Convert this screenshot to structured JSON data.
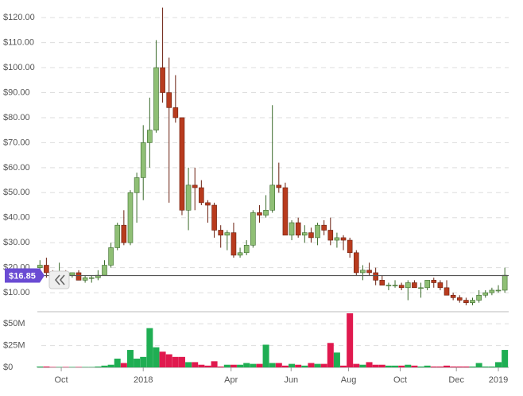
{
  "chart_data": [
    {
      "type": "candlestick",
      "up_color": "#8fbf75",
      "down_color": "#b83b1e",
      "xlim": [
        -0.4,
        72.6
      ],
      "ylim": [
        2.4,
        124.5
      ],
      "yticks": [
        {
          "value": 10,
          "label": "$10.00"
        },
        {
          "value": 20,
          "label": "$20.00"
        },
        {
          "value": 30,
          "label": "$30.00"
        },
        {
          "value": 40,
          "label": "$40.00"
        },
        {
          "value": 50,
          "label": "$50.00"
        },
        {
          "value": 60,
          "label": "$60.00"
        },
        {
          "value": 70,
          "label": "$70.00"
        },
        {
          "value": 80,
          "label": "$80.00"
        },
        {
          "value": 90,
          "label": "$90.00"
        },
        {
          "value": 100,
          "label": "$100.00"
        },
        {
          "value": 110,
          "label": "$110.00"
        },
        {
          "value": 120,
          "label": "$120.00"
        }
      ],
      "grid": true,
      "current_price": {
        "value": 16.85,
        "label": "$16.85"
      },
      "open": [
        20,
        21,
        18,
        17,
        18,
        17,
        18,
        15,
        16,
        16,
        17,
        21,
        28,
        37,
        30,
        50,
        56,
        70,
        75,
        100,
        90,
        84,
        80,
        43,
        53,
        52,
        46,
        45,
        35,
        33,
        34,
        25,
        26,
        29,
        42,
        41,
        43,
        53,
        52,
        33,
        38,
        33,
        34,
        32,
        37,
        35,
        31,
        32,
        31,
        26,
        18,
        19,
        18,
        15,
        13,
        13,
        13,
        12,
        14,
        12,
        12,
        15,
        14,
        12,
        9,
        8,
        7,
        6,
        7,
        9,
        10,
        11,
        11
      ],
      "high": [
        23,
        24,
        19,
        22,
        19,
        18,
        19,
        17,
        17,
        19,
        23,
        30,
        38,
        43,
        51,
        58,
        77,
        88,
        111,
        124,
        104,
        97,
        80,
        60,
        60,
        55,
        47,
        46,
        37,
        35,
        38,
        28,
        31,
        43,
        45,
        49,
        85,
        62,
        54,
        39,
        40,
        37,
        36,
        38,
        39,
        40,
        34,
        33,
        32,
        27,
        21,
        22,
        20,
        17,
        14,
        15,
        14,
        15,
        15,
        14,
        15,
        16,
        15,
        15,
        10,
        9,
        8,
        8,
        11,
        11,
        12,
        13,
        20
      ],
      "low": [
        18,
        16,
        16,
        16,
        16,
        16,
        15,
        14,
        14,
        15,
        17,
        20,
        27,
        29,
        29,
        38,
        47,
        60,
        74,
        86,
        46,
        78,
        41,
        35,
        43,
        45,
        38,
        32,
        28,
        27,
        24,
        24,
        25,
        28,
        38,
        40,
        42,
        50,
        34,
        31,
        32,
        30,
        30,
        29,
        33,
        29,
        28,
        27,
        24,
        17,
        15,
        17,
        13,
        13,
        11,
        12,
        11,
        7,
        12,
        8,
        11,
        12,
        11,
        9,
        7,
        6,
        5,
        5,
        6,
        8,
        9,
        10,
        10
      ],
      "close": [
        21,
        18,
        17,
        18,
        17,
        18,
        15,
        16,
        16,
        17,
        21,
        28,
        37,
        30,
        50,
        56,
        70,
        75,
        100,
        90,
        84,
        80,
        43,
        53,
        52,
        46,
        45,
        35,
        33,
        34,
        25,
        26,
        29,
        42,
        41,
        43,
        53,
        52,
        33,
        38,
        33,
        34,
        32,
        37,
        35,
        31,
        32,
        31,
        26,
        18,
        19,
        18,
        15,
        13,
        13,
        13,
        12,
        14,
        12,
        12,
        15,
        14,
        12,
        9,
        8,
        7,
        6,
        7,
        9,
        10,
        11,
        11,
        17
      ]
    },
    {
      "type": "bar",
      "up_color": "#1fae53",
      "down_color": "#e0194e",
      "xlim": [
        -0.4,
        72.6
      ],
      "ylim": [
        0,
        62
      ],
      "yticks": [
        {
          "value": 0,
          "label": "$0"
        },
        {
          "value": 25,
          "label": "$25M"
        },
        {
          "value": 50,
          "label": "$50M"
        }
      ],
      "xticks": [
        {
          "value": 3.3,
          "label": "Oct"
        },
        {
          "value": 16,
          "label": "2018"
        },
        {
          "value": 29.6,
          "label": "Apr"
        },
        {
          "value": 38.9,
          "label": "Jun"
        },
        {
          "value": 47.8,
          "label": "Aug"
        },
        {
          "value": 55.8,
          "label": "Oct"
        },
        {
          "value": 64.5,
          "label": "Dec"
        },
        {
          "value": 71,
          "label": "2019"
        }
      ],
      "grid": true,
      "values": [
        1,
        1,
        0.5,
        0.5,
        0.5,
        0.5,
        0.5,
        0.5,
        0.5,
        1,
        2,
        3,
        10,
        5,
        20,
        10,
        12,
        45,
        23,
        18,
        15,
        12,
        12,
        6,
        6,
        3,
        2,
        7,
        1,
        3,
        3,
        3,
        5,
        4,
        4,
        26,
        5,
        5,
        2,
        4,
        3,
        2,
        5,
        4,
        4,
        28,
        17,
        2,
        62,
        4,
        3,
        6,
        3,
        3,
        2,
        2,
        2,
        3,
        2,
        1,
        2,
        1,
        1,
        2,
        1,
        1,
        1,
        1,
        5,
        1,
        1,
        6,
        20
      ]
    }
  ]
}
